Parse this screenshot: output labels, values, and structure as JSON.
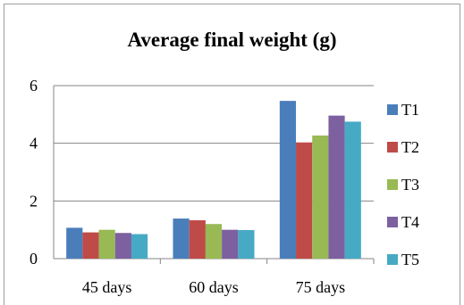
{
  "chart_data": {
    "type": "bar",
    "title": "Average final weight (g)",
    "categories": [
      "45 days",
      "60 days",
      "75 days"
    ],
    "series": [
      {
        "name": "T1",
        "color": "#4a7ebb",
        "values": [
          1.07,
          1.39,
          5.47
        ]
      },
      {
        "name": "T2",
        "color": "#be4b48",
        "values": [
          0.91,
          1.33,
          4.03
        ]
      },
      {
        "name": "T3",
        "color": "#98b954",
        "values": [
          1.0,
          1.2,
          4.27
        ]
      },
      {
        "name": "T4",
        "color": "#7d60a0",
        "values": [
          0.89,
          1.0,
          4.96
        ]
      },
      {
        "name": "T5",
        "color": "#46aac5",
        "values": [
          0.85,
          0.99,
          4.75
        ]
      }
    ],
    "ylim": [
      0,
      6
    ],
    "yticks": [
      "0",
      "2",
      "4",
      "6"
    ],
    "grid": true,
    "legend": "right"
  }
}
